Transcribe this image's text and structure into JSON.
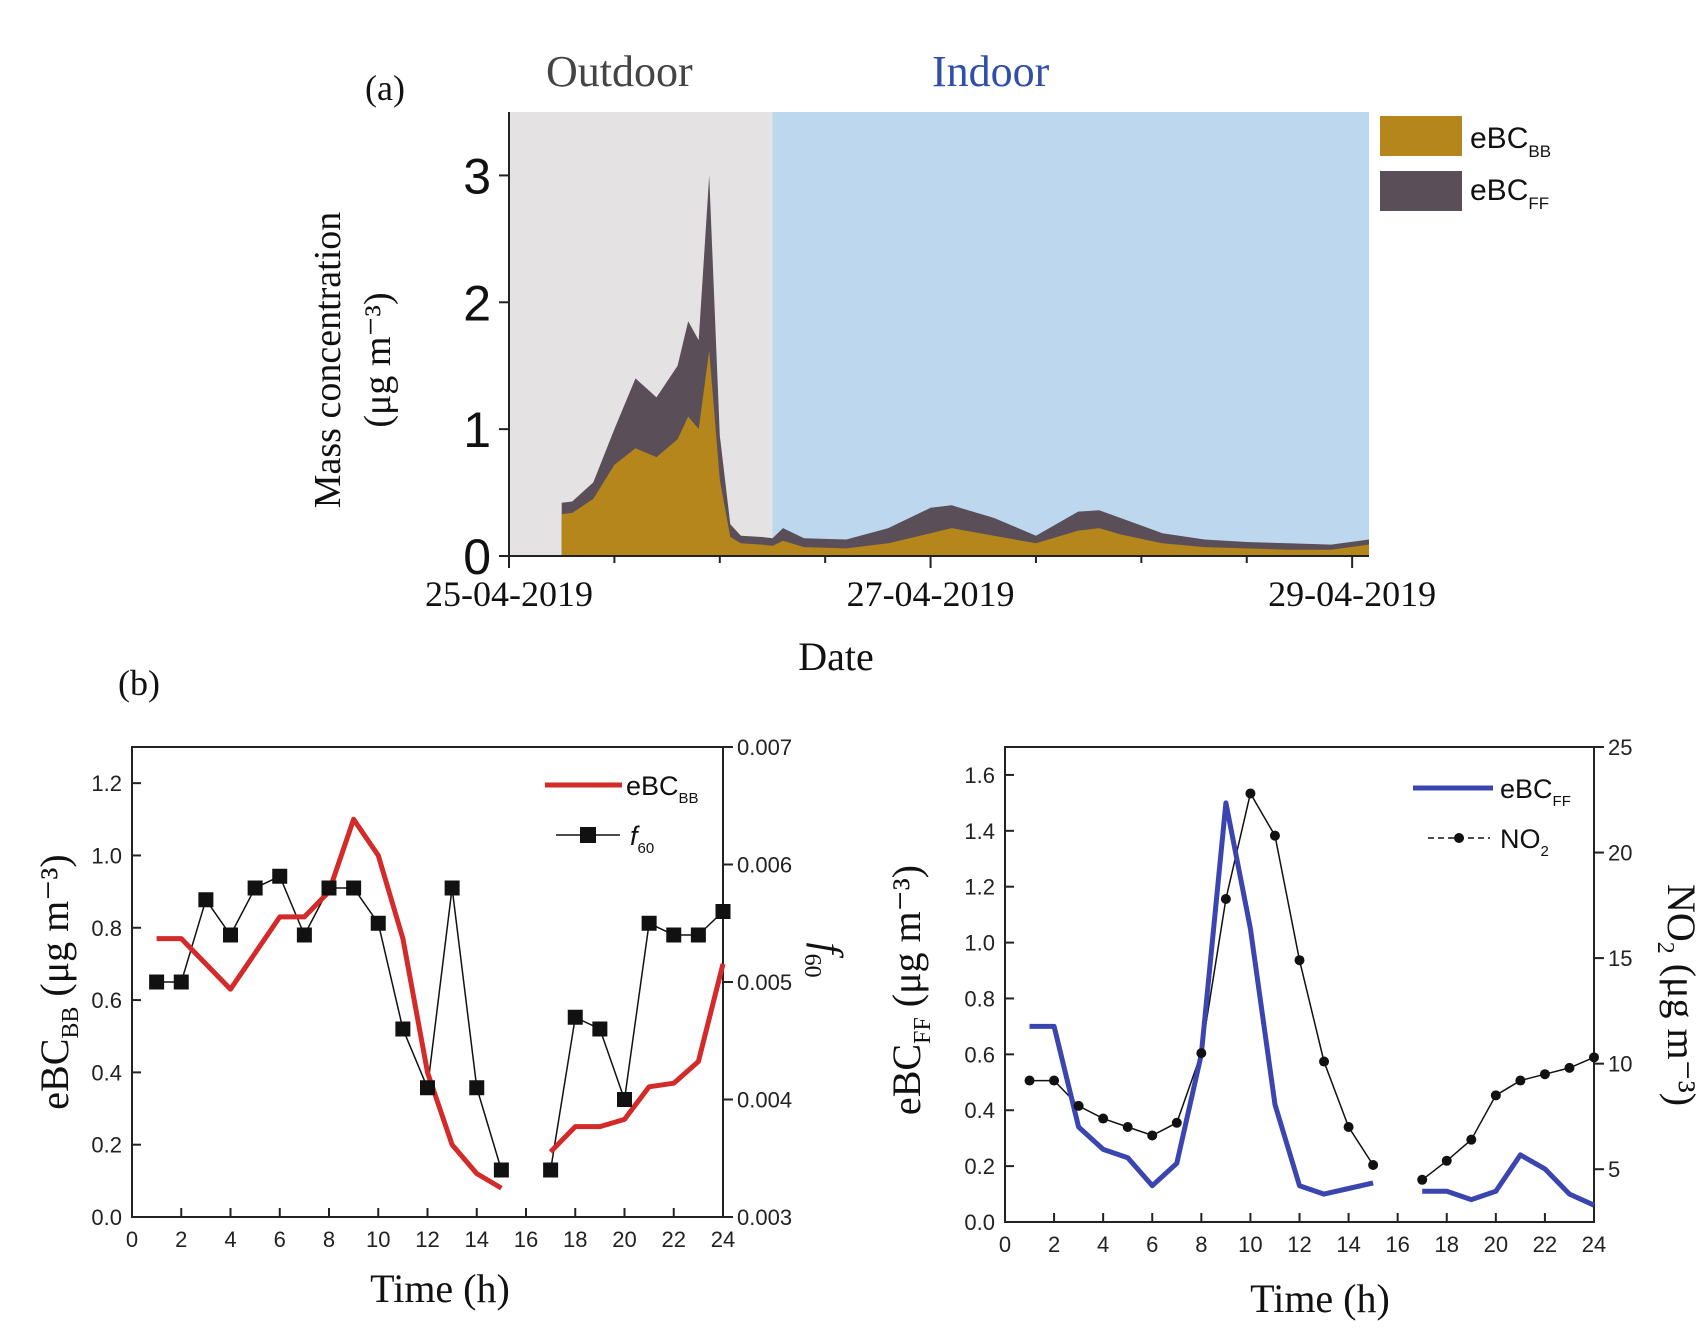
{
  "panel_labels": {
    "a": "(a)",
    "b": "(b)"
  },
  "regions": {
    "outdoor": "Outdoor",
    "indoor": "Indoor"
  },
  "colors": {
    "bb": "#b5861c",
    "ff": "#5a4e58",
    "outdoor_bg": "#e4e2e3",
    "indoor_bg": "#bdd8ee",
    "ebc_bb_line": "#d32a2a",
    "ebc_ff_line": "#3b45b0",
    "marker": "#111111",
    "indoor_text": "#2f4faa",
    "outdoor_text": "#444444"
  },
  "chart_data": [
    {
      "id": "a",
      "type": "area",
      "stacked": true,
      "xlabel": "Date",
      "ylabel_line1": "Mass concentration",
      "ylabel_line2": "(μg m⁻³)",
      "x_ticks": [
        "25-04-2019",
        "27-04-2019",
        "29-04-2019"
      ],
      "ylim": [
        0,
        3.5
      ],
      "y_ticks": [
        0,
        1,
        2,
        3
      ],
      "legend": [
        {
          "name": "eBC",
          "sub": "BB",
          "color_key": "bb"
        },
        {
          "name": "eBC",
          "sub": "FF",
          "color_key": "ff"
        }
      ],
      "outdoor_until_day": 1.25,
      "x_day_range": [
        0,
        4.08
      ],
      "series_days": [
        0.25,
        0.3,
        0.4,
        0.5,
        0.6,
        0.7,
        0.8,
        0.85,
        0.9,
        0.95,
        1.0,
        1.05,
        1.1,
        1.2,
        1.25,
        1.3,
        1.4,
        1.6,
        1.8,
        2.0,
        2.1,
        2.3,
        2.5,
        2.7,
        2.8,
        2.9,
        3.1,
        3.3,
        3.5,
        3.7,
        3.9,
        4.08
      ],
      "series_bb": [
        0.33,
        0.34,
        0.45,
        0.72,
        0.85,
        0.78,
        0.92,
        1.1,
        1.0,
        1.62,
        0.6,
        0.15,
        0.1,
        0.09,
        0.08,
        0.12,
        0.07,
        0.06,
        0.1,
        0.18,
        0.22,
        0.16,
        0.1,
        0.2,
        0.22,
        0.17,
        0.1,
        0.07,
        0.06,
        0.05,
        0.05,
        0.09
      ],
      "series_total": [
        0.42,
        0.43,
        0.58,
        1.0,
        1.4,
        1.25,
        1.5,
        1.85,
        1.7,
        3.0,
        0.95,
        0.25,
        0.16,
        0.15,
        0.14,
        0.22,
        0.14,
        0.13,
        0.22,
        0.38,
        0.4,
        0.3,
        0.16,
        0.35,
        0.36,
        0.3,
        0.18,
        0.13,
        0.11,
        0.1,
        0.09,
        0.13
      ]
    },
    {
      "id": "b1",
      "type": "line",
      "xlabel": "Time (h)",
      "ylabel": "eBC",
      "ylabel_sub": "BB",
      "ylabel_unit": " (μg m⁻³)",
      "right_ylabel": "f",
      "right_ylabel_sub": "60",
      "xlim": [
        0,
        24
      ],
      "x_ticks": [
        0,
        2,
        4,
        6,
        8,
        10,
        12,
        14,
        16,
        18,
        20,
        22,
        24
      ],
      "ylim": [
        0,
        1.3
      ],
      "y_ticks": [
        0.0,
        0.2,
        0.4,
        0.6,
        0.8,
        1.0,
        1.2
      ],
      "y_tick_labels": [
        "0.0",
        "0.2",
        "0.4",
        "0.6",
        "0.8",
        "1.0",
        "1.2"
      ],
      "right_ylim": [
        0.003,
        0.007
      ],
      "right_y_ticks": [
        0.003,
        0.004,
        0.005,
        0.006,
        0.007
      ],
      "right_y_tick_labels": [
        "0.003",
        "0.004",
        "0.005",
        "0.006",
        "0.007"
      ],
      "legend": [
        {
          "name": "eBC",
          "sub": "BB",
          "style": "line"
        },
        {
          "name": "f",
          "sub": "60",
          "style": "square"
        }
      ],
      "line_x": [
        [
          1,
          2,
          4,
          6,
          7,
          8,
          9,
          10,
          11,
          12,
          13,
          14,
          15
        ],
        [
          17,
          18,
          19,
          20,
          21,
          22,
          23,
          24
        ]
      ],
      "line_y": [
        [
          0.77,
          0.77,
          0.63,
          0.83,
          0.83,
          0.9,
          1.1,
          1.0,
          0.77,
          0.4,
          0.2,
          0.12,
          0.08
        ],
        [
          0.18,
          0.25,
          0.25,
          0.27,
          0.36,
          0.37,
          0.43,
          0.7
        ]
      ],
      "marker_x": [
        [
          1,
          2,
          3,
          4,
          5,
          6,
          7,
          8,
          9,
          10,
          11,
          12,
          13,
          14,
          15
        ],
        [
          17,
          18,
          19,
          20,
          21,
          22,
          23,
          24
        ]
      ],
      "marker_y": [
        [
          0.005,
          0.005,
          0.0057,
          0.0054,
          0.0058,
          0.0059,
          0.0054,
          0.0058,
          0.0058,
          0.0055,
          0.0046,
          0.0041,
          0.0058,
          0.0041,
          0.0034
        ],
        [
          0.0034,
          0.0047,
          0.0046,
          0.004,
          0.0055,
          0.0054,
          0.0054,
          0.0056
        ]
      ]
    },
    {
      "id": "b2",
      "type": "line",
      "xlabel": "Time (h)",
      "ylabel": "eBC",
      "ylabel_sub": "FF",
      "ylabel_unit": " (μg m⁻³)",
      "right_ylabel": "NO",
      "right_ylabel_sub": "2",
      "right_ylabel_unit": " (μg m⁻³)",
      "xlim": [
        0,
        24
      ],
      "x_ticks": [
        0,
        2,
        4,
        6,
        8,
        10,
        12,
        14,
        16,
        18,
        20,
        22,
        24
      ],
      "ylim": [
        0,
        1.7
      ],
      "y_ticks": [
        0.0,
        0.2,
        0.4,
        0.6,
        0.8,
        1.0,
        1.2,
        1.4,
        1.6
      ],
      "y_tick_labels": [
        "0.0",
        "0.2",
        "0.4",
        "0.6",
        "0.8",
        "1.0",
        "1.2",
        "1.4",
        "1.6"
      ],
      "right_ylim": [
        2.5,
        25
      ],
      "right_y_ticks": [
        5,
        10,
        15,
        20,
        25
      ],
      "right_y_tick_labels": [
        "5",
        "10",
        "15",
        "20",
        "25"
      ],
      "legend": [
        {
          "name": "eBC",
          "sub": "FF",
          "style": "line"
        },
        {
          "name": "NO",
          "sub": "2",
          "style": "dot"
        }
      ],
      "line_x": [
        [
          1,
          2,
          3,
          4,
          5,
          6,
          7,
          8,
          9,
          10,
          11,
          12,
          13,
          14,
          15
        ],
        [
          17,
          18,
          19,
          20,
          21,
          22,
          23,
          24
        ]
      ],
      "line_y": [
        [
          0.7,
          0.7,
          0.34,
          0.26,
          0.23,
          0.13,
          0.21,
          0.6,
          1.5,
          1.05,
          0.42,
          0.13,
          0.1,
          0.12,
          0.14
        ],
        [
          0.11,
          0.11,
          0.08,
          0.11,
          0.24,
          0.19,
          0.1,
          0.06
        ]
      ],
      "marker_x": [
        [
          1,
          2,
          3,
          4,
          5,
          6,
          7,
          8,
          9,
          10,
          11,
          12,
          13,
          14,
          15
        ],
        [
          17,
          18,
          19,
          20,
          21,
          22,
          23,
          24
        ]
      ],
      "marker_y": [
        [
          9.2,
          9.2,
          8.0,
          7.4,
          7.0,
          6.6,
          7.2,
          10.5,
          17.8,
          22.8,
          20.8,
          14.9,
          10.1,
          7.0,
          5.2
        ],
        [
          4.5,
          5.4,
          6.4,
          8.5,
          9.2,
          9.5,
          9.8,
          10.3
        ]
      ]
    }
  ]
}
